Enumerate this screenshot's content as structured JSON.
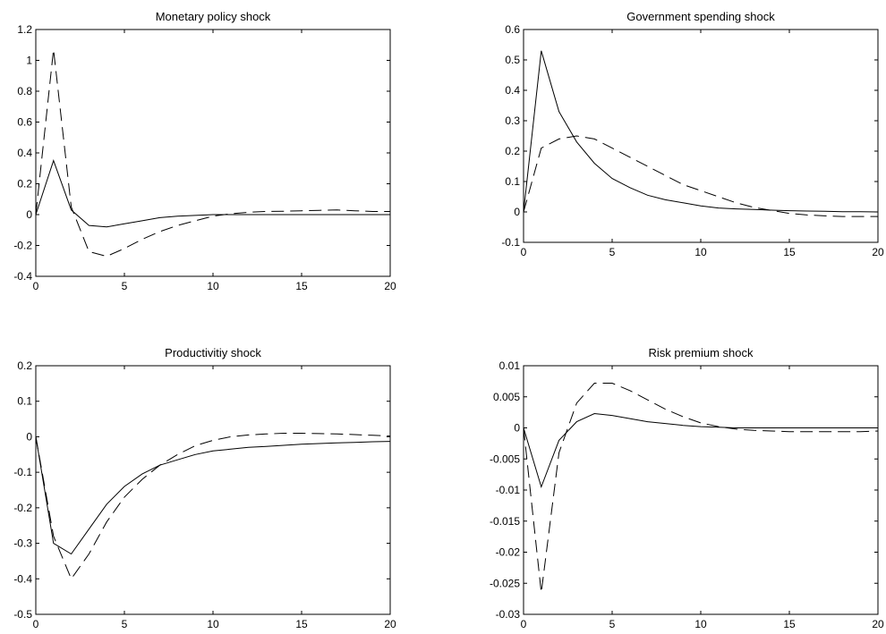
{
  "chart_data": [
    {
      "type": "line",
      "title": "Monetary policy shock",
      "xlim": [
        0,
        20
      ],
      "ylim": [
        -0.4,
        1.2
      ],
      "xticks": [
        "0",
        "5",
        "10",
        "15",
        "20"
      ],
      "yticks": [
        "1.2",
        "1",
        "0.8",
        "0.6",
        "0.4",
        "0.2",
        "0",
        "-0.2",
        "-0.4"
      ],
      "x": [
        0,
        1,
        2,
        3,
        4,
        5,
        6,
        7,
        8,
        9,
        10,
        11,
        12,
        13,
        14,
        15,
        16,
        17,
        18,
        19,
        20
      ],
      "series": [
        {
          "style": "solid",
          "values": [
            0,
            0.35,
            0.03,
            -0.07,
            -0.08,
            -0.06,
            -0.04,
            -0.02,
            -0.01,
            -0.005,
            0,
            0,
            0,
            0,
            0,
            0,
            0,
            0,
            0,
            0,
            0
          ]
        },
        {
          "style": "dashed",
          "values": [
            0,
            1.07,
            0.05,
            -0.24,
            -0.27,
            -0.22,
            -0.16,
            -0.11,
            -0.07,
            -0.04,
            -0.01,
            0.005,
            0.015,
            0.02,
            0.022,
            0.025,
            0.028,
            0.03,
            0.025,
            0.02,
            0.02
          ]
        }
      ]
    },
    {
      "type": "line",
      "title": "Government spending shock",
      "xlim": [
        0,
        20
      ],
      "ylim": [
        -0.1,
        0.6
      ],
      "xticks": [
        "0",
        "5",
        "10",
        "15",
        "20"
      ],
      "yticks": [
        "0.6",
        "0.5",
        "0.4",
        "0.3",
        "0.2",
        "0.1",
        "0",
        "-0.1"
      ],
      "x": [
        0,
        1,
        2,
        3,
        4,
        5,
        6,
        7,
        8,
        9,
        10,
        11,
        12,
        13,
        14,
        15,
        16,
        17,
        18,
        19,
        20
      ],
      "series": [
        {
          "style": "solid",
          "values": [
            0,
            0.53,
            0.33,
            0.23,
            0.16,
            0.11,
            0.08,
            0.055,
            0.04,
            0.03,
            0.02,
            0.013,
            0.01,
            0.008,
            0.006,
            0.004,
            0.003,
            0.002,
            0.001,
            0.001,
            0
          ]
        },
        {
          "style": "dashed",
          "values": [
            0,
            0.21,
            0.24,
            0.25,
            0.24,
            0.21,
            0.18,
            0.15,
            0.12,
            0.09,
            0.07,
            0.05,
            0.03,
            0.015,
            0.005,
            -0.005,
            -0.01,
            -0.013,
            -0.015,
            -0.015,
            -0.015
          ]
        }
      ]
    },
    {
      "type": "line",
      "title": "Productivitiy shock",
      "xlim": [
        0,
        20
      ],
      "ylim": [
        -0.5,
        0.2
      ],
      "xticks": [
        "0",
        "5",
        "10",
        "15",
        "20"
      ],
      "yticks": [
        "0.2",
        "0.1",
        "0",
        "-0.1",
        "-0.2",
        "-0.3",
        "-0.4",
        "-0.5"
      ],
      "x": [
        0,
        1,
        2,
        3,
        4,
        5,
        6,
        7,
        8,
        9,
        10,
        11,
        12,
        13,
        14,
        15,
        16,
        17,
        18,
        19,
        20
      ],
      "series": [
        {
          "style": "solid",
          "values": [
            0,
            -0.3,
            -0.33,
            -0.26,
            -0.19,
            -0.14,
            -0.105,
            -0.08,
            -0.065,
            -0.05,
            -0.04,
            -0.035,
            -0.03,
            -0.027,
            -0.024,
            -0.021,
            -0.019,
            -0.017,
            -0.016,
            -0.014,
            -0.013
          ]
        },
        {
          "style": "dashed",
          "values": [
            0,
            -0.28,
            -0.4,
            -0.33,
            -0.24,
            -0.17,
            -0.12,
            -0.08,
            -0.05,
            -0.025,
            -0.01,
            0,
            0.005,
            0.008,
            0.01,
            0.01,
            0.009,
            0.008,
            0.006,
            0.004,
            0.002
          ]
        }
      ]
    },
    {
      "type": "line",
      "title": "Risk premium shock",
      "xlim": [
        0,
        20
      ],
      "ylim": [
        -0.03,
        0.01
      ],
      "xticks": [
        "0",
        "5",
        "10",
        "15",
        "20"
      ],
      "yticks": [
        "0.01",
        "0.005",
        "0",
        "-0.005",
        "-0.01",
        "-0.015",
        "-0.02",
        "-0.025",
        "-0.03"
      ],
      "x": [
        0,
        1,
        2,
        3,
        4,
        5,
        6,
        7,
        8,
        9,
        10,
        11,
        12,
        13,
        14,
        15,
        16,
        17,
        18,
        19,
        20
      ],
      "series": [
        {
          "style": "solid",
          "values": [
            0,
            -0.0095,
            -0.002,
            0.001,
            0.0023,
            0.002,
            0.0015,
            0.001,
            0.0007,
            0.0004,
            0.0002,
            0.0001,
            0,
            0,
            0,
            0,
            0,
            0,
            0,
            0,
            0
          ]
        },
        {
          "style": "dashed",
          "values": [
            0,
            -0.0265,
            -0.004,
            0.004,
            0.0072,
            0.0072,
            0.006,
            0.0045,
            0.003,
            0.0018,
            0.0008,
            0.0002,
            -0.0002,
            -0.0004,
            -0.0005,
            -0.0006,
            -0.0006,
            -0.0006,
            -0.0006,
            -0.0006,
            -0.0005
          ]
        }
      ]
    }
  ]
}
